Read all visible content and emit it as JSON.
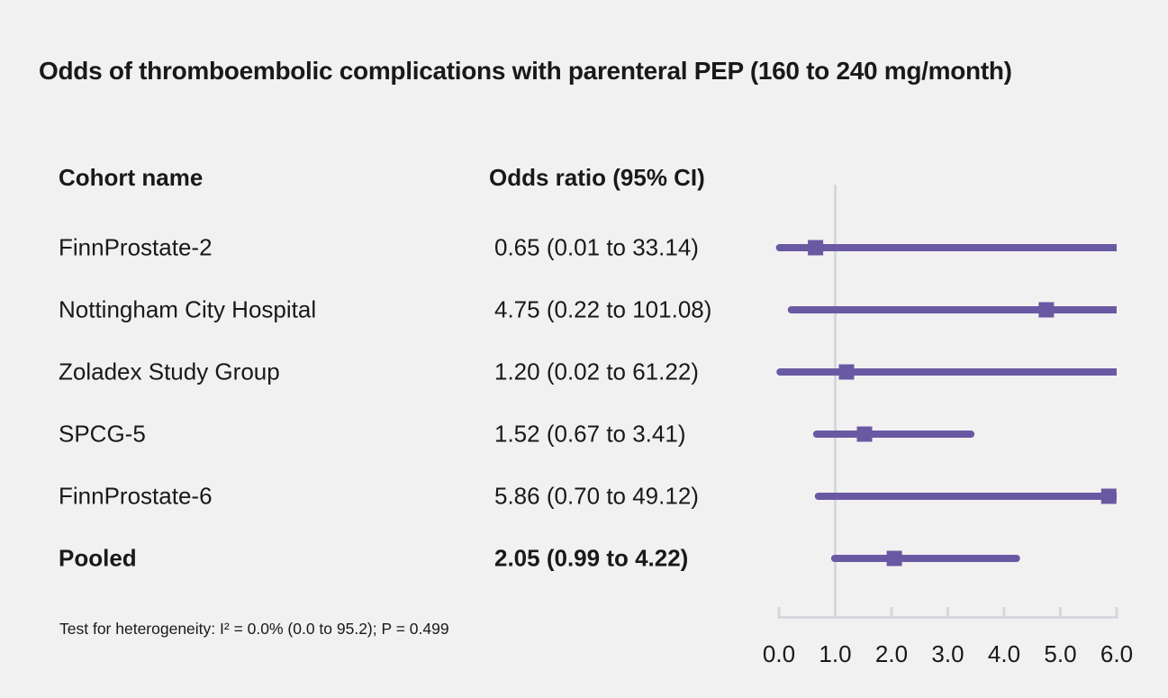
{
  "chart_data": {
    "type": "forest",
    "title": "Odds of thromboembolic complications with parenteral PEP (160 to 240 mg/month)",
    "columns": [
      "Cohort name",
      "Odds ratio (95% CI)"
    ],
    "rows": [
      {
        "label": "FinnProstate-2",
        "or_text": "0.65 (0.01 to 33.14)",
        "or": 0.65,
        "lo": 0.01,
        "hi": 33.14,
        "bold": false
      },
      {
        "label": "Nottingham City Hospital",
        "or_text": "4.75 (0.22 to 101.08)",
        "or": 4.75,
        "lo": 0.22,
        "hi": 101.08,
        "bold": false
      },
      {
        "label": "Zoladex Study Group",
        "or_text": "1.20 (0.02 to 61.22)",
        "or": 1.2,
        "lo": 0.02,
        "hi": 61.22,
        "bold": false
      },
      {
        "label": "SPCG-5",
        "or_text": "1.52 (0.67 to 3.41)",
        "or": 1.52,
        "lo": 0.67,
        "hi": 3.41,
        "bold": false
      },
      {
        "label": "FinnProstate-6",
        "or_text": "5.86 (0.70 to 49.12)",
        "or": 5.86,
        "lo": 0.7,
        "hi": 49.12,
        "bold": false
      },
      {
        "label": "Pooled",
        "or_text": "2.05 (0.99 to 4.22)",
        "or": 2.05,
        "lo": 0.99,
        "hi": 4.22,
        "bold": true
      }
    ],
    "x_axis": {
      "min": 0,
      "max": 6,
      "tick_labels": [
        "0.0",
        "1.0",
        "2.0",
        "3.0",
        "4.0",
        "5.0",
        "6.0"
      ],
      "tick_values": [
        0,
        1,
        2,
        3,
        4,
        5,
        6
      ],
      "reference_line": 1.0
    },
    "footnote": "Test for heterogeneity: I² = 0.0% (0.0 to 95.2); P = 0.499",
    "colors": {
      "marker": "#6959a3",
      "reference_line": "#d5d9de",
      "axis": "#d5d9de",
      "background": "#f2f1f1",
      "text": "#191919"
    },
    "legend": "none",
    "grid": "reference line at x=1.0 only"
  }
}
